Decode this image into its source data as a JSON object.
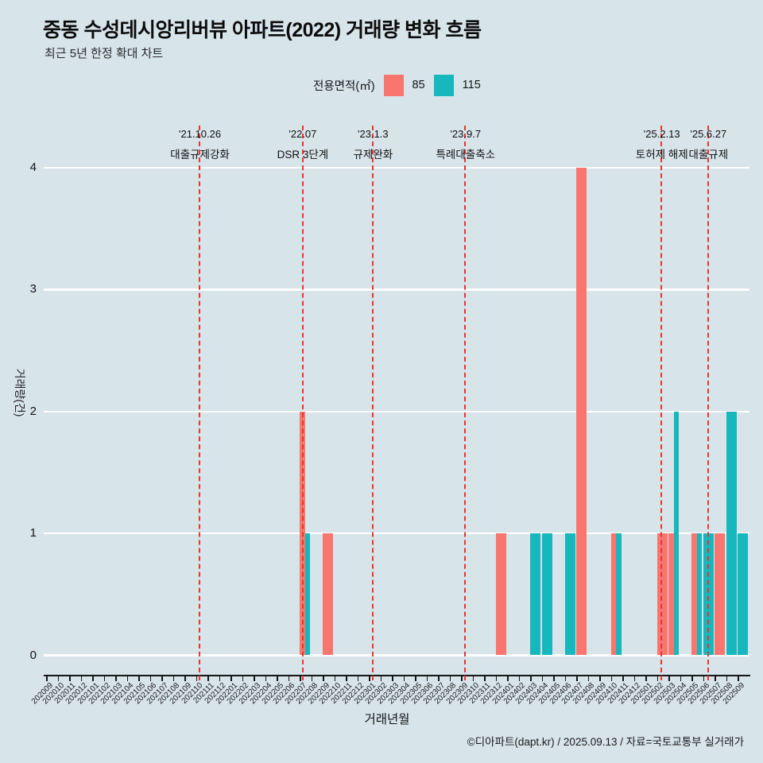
{
  "title": "중동 수성데시앙리버뷰 아파트(2022) 거래량 변화 흐름",
  "subtitle": "최근 5년 한정 확대 차트",
  "legend": {
    "title": "전용면적(㎡)",
    "items": [
      {
        "label": "85",
        "color": "#F8766D"
      },
      {
        "label": "115",
        "color": "#16B7BD"
      }
    ]
  },
  "footer": "©디아파트(dapt.kr) / 2025.09.13 / 자료=국토교통부 실거래가",
  "chart_data": {
    "type": "bar",
    "title": "중동 수성데시앙리버뷰 아파트(2022) 거래량 변화 흐름",
    "subtitle": "최근 5년 한정 확대 차트",
    "xlabel": "거래년월",
    "ylabel": "거래량(건)",
    "ylim": [
      0,
      4
    ],
    "yticks": [
      0,
      1,
      2,
      3,
      4
    ],
    "grid": true,
    "gridline_color": "#ffffff",
    "background_color": "#D7E4EA",
    "event_line_color": "#EB342B",
    "legend_position": "top",
    "categories": [
      "202009",
      "202010",
      "202011",
      "202012",
      "202101",
      "202102",
      "202103",
      "202104",
      "202105",
      "202106",
      "202107",
      "202108",
      "202109",
      "202110",
      "202111",
      "202112",
      "202201",
      "202202",
      "202203",
      "202204",
      "202205",
      "202206",
      "202207",
      "202208",
      "202209",
      "202210",
      "202211",
      "202212",
      "202301",
      "202302",
      "202303",
      "202304",
      "202305",
      "202306",
      "202307",
      "202308",
      "202309",
      "202310",
      "202311",
      "202312",
      "202401",
      "202402",
      "202403",
      "202404",
      "202405",
      "202406",
      "202407",
      "202408",
      "202409",
      "202410",
      "202411",
      "202412",
      "202501",
      "202502",
      "202503",
      "202504",
      "202505",
      "202506",
      "202507",
      "202508",
      "202509"
    ],
    "series": [
      {
        "name": "85",
        "color": "#F8766D",
        "points": {
          "202207": 2,
          "202209": 1,
          "202312": 1,
          "202407": 4,
          "202410": 1,
          "202502": 1,
          "202503": 1,
          "202505": 1,
          "202507": 1
        }
      },
      {
        "name": "115",
        "color": "#16B7BD",
        "points": {
          "202207": 1,
          "202403": 1,
          "202404": 1,
          "202406": 1,
          "202410": 1,
          "202503": 2,
          "202505": 1,
          "202506": 1,
          "202508": 2,
          "202509": 1
        }
      }
    ],
    "events": [
      {
        "date": "'21.10.26",
        "label": "대출규제강화",
        "pos": 13.28
      },
      {
        "date": "'22.07",
        "label": "DSR 3단계",
        "pos": 22.2
      },
      {
        "date": "'23.1.3",
        "label": "규제완화",
        "pos": 28.3
      },
      {
        "date": "'23.9.7",
        "label": "특례대출축소",
        "pos": 36.33
      },
      {
        "date": "'25.2.13",
        "label": "토허제 해제",
        "pos": 53.36
      },
      {
        "date": "'25.6.27",
        "label": "대출규제",
        "pos": 57.4
      }
    ]
  }
}
